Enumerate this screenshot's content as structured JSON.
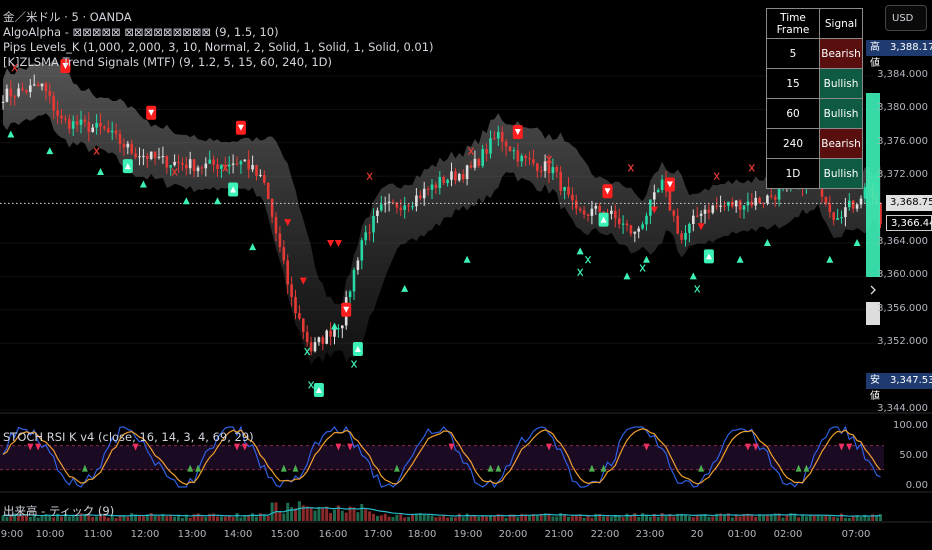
{
  "legend": {
    "symbol": "金／米ドル · 5 · OANDA",
    "ind1": "AlgoAlpha - ⊠⊠⊠⊠⊠ ⊠⊠⊠⊠⊠⊠⊠⊠⊠ (9, 1.5, 10)",
    "ind2": "Pips Levels_K (1,000, 2,000, 3, 10, Normal, 2, Solid, 1, Solid, 1, Solid, 0.01)",
    "ind3": "[K]ZLSMA Trend Signals (MTF) (9, 1.2, 5, 15, 60, 240, 1D)",
    "stoch": "STOCH RSI K v4 (close, 16, 14, 3, 4, 69, 29)",
    "volume": "出来高 - ティック (9)"
  },
  "currency": "USD",
  "table": {
    "headers": [
      "Time Frame",
      "Signal"
    ],
    "rows": [
      {
        "tf": "5",
        "signal": "Bearish",
        "state": "bear"
      },
      {
        "tf": "15",
        "signal": "Bullish",
        "state": "bull"
      },
      {
        "tf": "60",
        "signal": "Bullish",
        "state": "bull"
      },
      {
        "tf": "240",
        "signal": "Bearish",
        "state": "bear"
      },
      {
        "tf": "1D",
        "signal": "Bullish",
        "state": "bull"
      }
    ]
  },
  "price_axis": {
    "ticks": [
      "3,384.000",
      "3,380.000",
      "3,376.000",
      "3,372.000",
      "3,364.000",
      "3,360.000",
      "3,356.000",
      "3,352.000",
      "3,344.000"
    ],
    "tick_values": [
      3384,
      3380,
      3376,
      3372,
      3364,
      3360,
      3356,
      3352,
      3344
    ],
    "high_label": "高値",
    "high_value": "3,388.175",
    "high": 3388.175,
    "low_label": "安値",
    "low_value": "3,347.530",
    "low": 3347.53,
    "last_value": "3,368.750",
    "last": 3368.75,
    "current_value": "3,366.445",
    "current": 3366.445,
    "stoch_ticks": [
      "100.00",
      "50.00",
      "0.00"
    ]
  },
  "time_axis": [
    "9:00",
    "10:00",
    "11:00",
    "12:00",
    "13:00",
    "14:00",
    "15:00",
    "16:00",
    "17:00",
    "18:00",
    "19:00",
    "20:00",
    "21:00",
    "22:00",
    "23:00",
    "20",
    "01:00",
    "02:00",
    "07:00"
  ],
  "colors": {
    "up": "#26d9a6",
    "down": "#e53935",
    "bull_signal": "#3df2b8",
    "bear_signal": "#ff1f1f",
    "stoch_k": "#2f5fe0",
    "stoch_d": "#f0a030",
    "volume_ma": "#26b8c8"
  },
  "chart_data": {
    "type": "candlestick",
    "interval": "5",
    "keypoints": [
      [
        0,
        3381.7
      ],
      [
        10,
        3382.8
      ],
      [
        15,
        3378.6
      ],
      [
        26,
        3377.5
      ],
      [
        33,
        3375
      ],
      [
        41,
        3373.8
      ],
      [
        51,
        3373.2
      ],
      [
        62,
        3373.8
      ],
      [
        67,
        3371
      ],
      [
        71,
        3363.2
      ],
      [
        74,
        3357.2
      ],
      [
        79,
        3351.2
      ],
      [
        87,
        3354.8
      ],
      [
        92,
        3364.4
      ],
      [
        97,
        3368
      ],
      [
        105,
        3369.2
      ],
      [
        113,
        3371.6
      ],
      [
        120,
        3372.8
      ],
      [
        127,
        3377
      ],
      [
        133,
        3374
      ],
      [
        141,
        3372.8
      ],
      [
        147,
        3367.4
      ],
      [
        154,
        3368
      ],
      [
        162,
        3365
      ],
      [
        169,
        3371
      ],
      [
        174,
        3364.4
      ],
      [
        179,
        3368
      ],
      [
        187,
        3368.6
      ],
      [
        195,
        3369.2
      ],
      [
        203,
        3371
      ],
      [
        208,
        3372.2
      ],
      [
        213,
        3367.4
      ],
      [
        218,
        3368.6
      ],
      [
        222,
        3371
      ],
      [
        225,
        3366.4
      ]
    ],
    "bear_labels": [
      [
        16,
        3385.2
      ],
      [
        38,
        3379.6
      ],
      [
        61,
        3377.8
      ],
      [
        88,
        3356
      ],
      [
        132,
        3377.3
      ],
      [
        155,
        3370.2
      ],
      [
        171,
        3371
      ],
      [
        210,
        3372.6
      ]
    ],
    "bull_labels": [
      [
        32,
        3373.2
      ],
      [
        59,
        3370.4
      ],
      [
        81,
        3346.4
      ],
      [
        91,
        3351.3
      ],
      [
        154,
        3366.8
      ],
      [
        181,
        3362.4
      ]
    ],
    "bull_triangles": [
      [
        2,
        3377
      ],
      [
        12,
        3375
      ],
      [
        25,
        3372.5
      ],
      [
        36,
        3371
      ],
      [
        47,
        3369
      ],
      [
        55,
        3369
      ],
      [
        64,
        3363.5
      ],
      [
        85,
        3354
      ],
      [
        103,
        3358.5
      ],
      [
        119,
        3362
      ],
      [
        148,
        3363
      ],
      [
        160,
        3360
      ],
      [
        165,
        3362
      ],
      [
        177,
        3360
      ],
      [
        189,
        3362
      ],
      [
        196,
        3364
      ],
      [
        212,
        3362
      ],
      [
        219,
        3364
      ]
    ],
    "bear_triangles": [
      [
        73,
        3366.5
      ],
      [
        77,
        3359.5
      ],
      [
        84,
        3364
      ],
      [
        86,
        3364
      ],
      [
        167,
        3368
      ],
      [
        179,
        3366
      ]
    ],
    "x_marks": [
      [
        3,
        3385
      ],
      [
        24,
        3375
      ],
      [
        44,
        3372.5
      ],
      [
        57,
        3373
      ],
      [
        78,
        3351
      ],
      [
        90,
        3349.5
      ],
      [
        94,
        3372
      ],
      [
        120,
        3375
      ],
      [
        140,
        3374
      ],
      [
        161,
        3373
      ],
      [
        183,
        3372
      ],
      [
        192,
        3373
      ],
      [
        200,
        3371.5
      ],
      [
        148,
        3360.5
      ],
      [
        164,
        3361
      ],
      [
        178,
        3358.5
      ],
      [
        150,
        3362
      ],
      [
        79,
        3347
      ]
    ],
    "stoch_levels": [
      69,
      29
    ],
    "stoch_range": [
      0,
      100
    ]
  }
}
